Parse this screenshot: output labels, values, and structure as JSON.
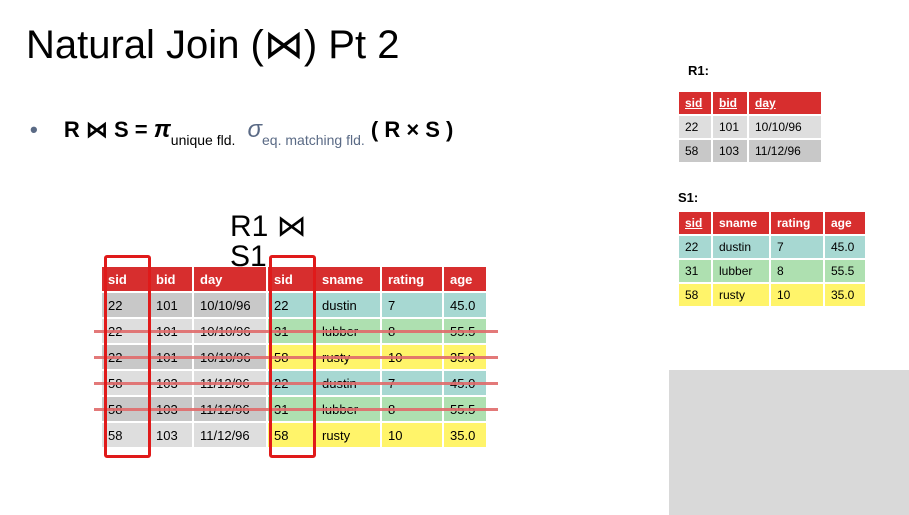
{
  "title": "Natural Join (⋈) Pt 2",
  "formula": {
    "bullet": "•",
    "lhs": "R ⋈ S =",
    "pi": "π",
    "pi_sub": "unique fld.",
    "sigma": "σ",
    "sigma_sub": "eq. matching fld.",
    "rhs": "( R × S )"
  },
  "join_label": "R1 ⋈",
  "join_label_2": "S1",
  "r1": {
    "label": "R1:",
    "headers": [
      "sid",
      "bid",
      "day"
    ],
    "rows": [
      [
        "22",
        "101",
        "10/10/96"
      ],
      [
        "58",
        "103",
        "11/12/96"
      ]
    ]
  },
  "s1": {
    "label": "S1:",
    "headers": [
      "sid",
      "sname",
      "rating",
      "age"
    ],
    "rows": [
      [
        "22",
        "dustin",
        "7",
        "45.0"
      ],
      [
        "31",
        "lubber",
        "8",
        "55.5"
      ],
      [
        "58",
        "rusty",
        "10",
        "35.0"
      ]
    ]
  },
  "product": {
    "headers": [
      "sid",
      "bid",
      "day",
      "sid",
      "sname",
      "rating",
      "age"
    ],
    "rows": [
      [
        "22",
        "101",
        "10/10/96",
        "22",
        "dustin",
        "7",
        "45.0"
      ],
      [
        "22",
        "101",
        "10/10/96",
        "31",
        "lubber",
        "8",
        "55.5"
      ],
      [
        "22",
        "101",
        "10/10/96",
        "58",
        "rusty",
        "10",
        "35.0"
      ],
      [
        "58",
        "103",
        "11/12/96",
        "22",
        "dustin",
        "7",
        "45.0"
      ],
      [
        "58",
        "103",
        "11/12/96",
        "31",
        "lubber",
        "8",
        "55.5"
      ],
      [
        "58",
        "103",
        "11/12/96",
        "58",
        "rusty",
        "10",
        "35.0"
      ]
    ],
    "struck_rows": [
      1,
      2,
      3,
      4
    ]
  },
  "colors": {
    "header_red": "#d72e2e",
    "teal": "#a7d8d2",
    "green": "#aee0b0",
    "yellow": "#fff46a",
    "gray": "#c8c8c8",
    "highlight_box": "#e01a1a",
    "strike": "#e06a6a"
  }
}
